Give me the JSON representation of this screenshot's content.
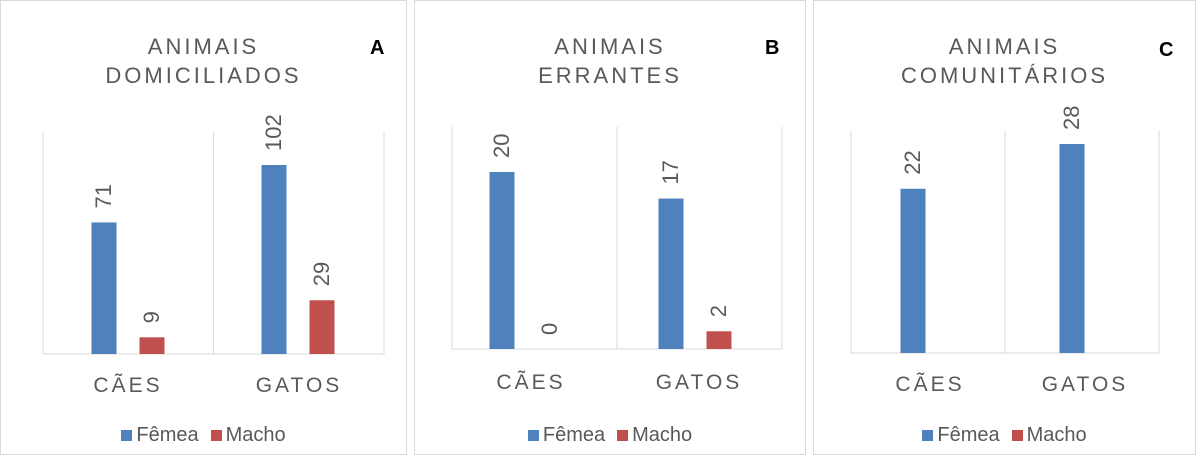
{
  "colors": {
    "female": "#4F81BD",
    "male": "#C0504D",
    "axis": "#d9d9d9",
    "text": "#595959"
  },
  "legend": {
    "female": "Fêmea",
    "male": "Macho"
  },
  "chart_data": [
    {
      "type": "bar",
      "letter": "A",
      "title_lines": [
        "ANIMAIS",
        "DOMICILIADOS"
      ],
      "categories": [
        "CÃES",
        "GATOS"
      ],
      "series": [
        {
          "name": "Fêmea",
          "values": [
            71,
            102
          ]
        },
        {
          "name": "Macho",
          "values": [
            9,
            29
          ]
        }
      ],
      "ylim": [
        0,
        102
      ],
      "legend_position": "bottom",
      "grid": false
    },
    {
      "type": "bar",
      "letter": "B",
      "title_lines": [
        "ANIMAIS",
        "ERRANTES"
      ],
      "categories": [
        "CÃES",
        "GATOS"
      ],
      "series": [
        {
          "name": "Fêmea",
          "values": [
            20,
            17
          ]
        },
        {
          "name": "Macho",
          "values": [
            0,
            2
          ]
        }
      ],
      "ylim": [
        0,
        20
      ],
      "legend_position": "bottom",
      "grid": false
    },
    {
      "type": "bar",
      "letter": "C",
      "title_lines": [
        "ANIMAIS",
        "COMUNITÁRIOS"
      ],
      "categories": [
        "CÃES",
        "GATOS"
      ],
      "series": [
        {
          "name": "Fêmea",
          "values": [
            22,
            28
          ]
        }
      ],
      "ylim": [
        0,
        28
      ],
      "legend_position": "bottom",
      "grid": false
    }
  ]
}
